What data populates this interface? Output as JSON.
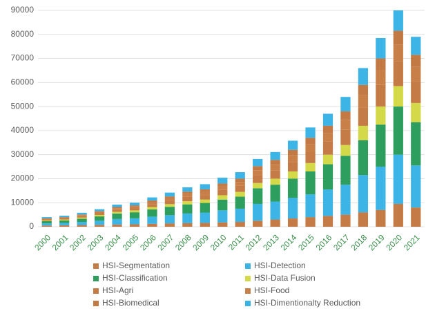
{
  "chart_data": {
    "type": "stacked_bar",
    "categories": [
      "2000",
      "2001",
      "2002",
      "2003",
      "2004",
      "2005",
      "2006",
      "2007",
      "2008",
      "2009",
      "2010",
      "2011",
      "2012",
      "2013",
      "2014",
      "2015",
      "2016",
      "2017",
      "2018",
      "2019",
      "2020",
      "2021"
    ],
    "series": [
      {
        "name": "HSI-Segmentation",
        "color": "#c57b45",
        "values": [
          500,
          600,
          700,
          800,
          900,
          1000,
          1200,
          1400,
          1500,
          1600,
          1800,
          2000,
          2500,
          3000,
          3500,
          4000,
          4500,
          5000,
          6000,
          7000,
          9500,
          8000
        ]
      },
      {
        "name": "HSI-Detection",
        "color": "#3cb4e5",
        "values": [
          900,
          1000,
          1300,
          1700,
          2300,
          2500,
          3000,
          3400,
          4000,
          4300,
          5000,
          5500,
          7000,
          7500,
          8500,
          9500,
          11000,
          12500,
          15500,
          18000,
          20500,
          17500
        ]
      },
      {
        "name": "HSI-Classification",
        "color": "#2e9e5e",
        "values": [
          900,
          1000,
          1300,
          1800,
          2300,
          2500,
          3000,
          3500,
          3800,
          4000,
          4500,
          5000,
          6500,
          7000,
          8000,
          9500,
          10500,
          12000,
          14500,
          17500,
          20000,
          18000
        ]
      },
      {
        "name": "HSI-Data Fusion",
        "color": "#d4d94a",
        "values": [
          300,
          400,
          500,
          600,
          700,
          800,
          1000,
          1100,
          1300,
          1400,
          1800,
          2000,
          2200,
          2500,
          3000,
          3500,
          4000,
          4500,
          6000,
          7500,
          8500,
          8000
        ]
      },
      {
        "name": "HSI-Agri",
        "color": "#c57b45",
        "values": [
          400,
          450,
          600,
          700,
          900,
          950,
          1200,
          1400,
          1800,
          1900,
          2200,
          2500,
          3200,
          3500,
          4000,
          4700,
          5400,
          6300,
          7700,
          9000,
          10400,
          9000
        ]
      },
      {
        "name": "HSI-Food",
        "color": "#c98048",
        "values": [
          300,
          300,
          400,
          500,
          600,
          650,
          800,
          1000,
          1200,
          1300,
          1500,
          1600,
          2100,
          2300,
          2700,
          3200,
          3600,
          4200,
          5100,
          6000,
          6900,
          6000
        ]
      },
      {
        "name": "HSI-Biomedical",
        "color": "#c27943",
        "values": [
          200,
          250,
          300,
          400,
          500,
          500,
          700,
          800,
          1000,
          1100,
          1200,
          1400,
          1700,
          2000,
          2300,
          2600,
          3000,
          3500,
          4200,
          5000,
          5700,
          5000
        ]
      },
      {
        "name": "HSI-Dimentionalty Reduction",
        "color": "#3cb4e5",
        "values": [
          500,
          600,
          700,
          800,
          1000,
          1100,
          1300,
          1600,
          1800,
          2100,
          2400,
          2700,
          3000,
          3300,
          3800,
          4300,
          5000,
          6000,
          7000,
          8500,
          8500,
          7500
        ]
      }
    ],
    "ylim": [
      0,
      90000
    ],
    "yticks": [
      0,
      10000,
      20000,
      30000,
      40000,
      50000,
      60000,
      70000,
      80000,
      90000
    ],
    "grid": true
  }
}
